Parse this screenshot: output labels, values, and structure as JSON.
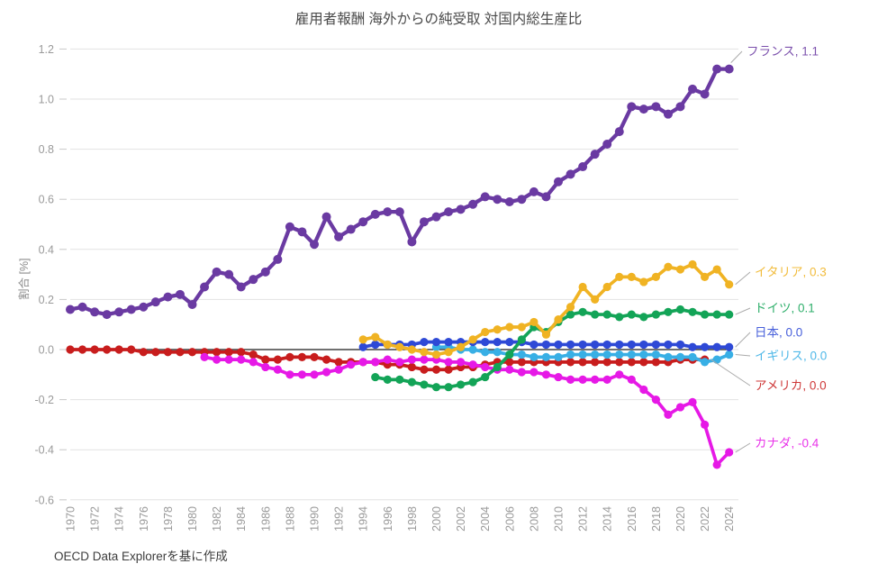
{
  "chart_data": {
    "type": "line",
    "title": "雇用者報酬 海外からの純受取 対国内総生産比",
    "ylabel": "割合 [%]",
    "source_note": "OECD Data Explorerを基に作成",
    "ylim": [
      -0.6,
      1.2
    ],
    "y_ticks": [
      "1.2",
      "1.0",
      "0.8",
      "0.6",
      "0.4",
      "0.2",
      "0.0",
      "-0.2",
      "-0.4",
      "-0.6"
    ],
    "x_ticks": [
      "1970",
      "1972",
      "1974",
      "1976",
      "1978",
      "1980",
      "1982",
      "1984",
      "1986",
      "1988",
      "1990",
      "1992",
      "1994",
      "1996",
      "1998",
      "2000",
      "2002",
      "2004",
      "2006",
      "2008",
      "2010",
      "2012",
      "2014",
      "2016",
      "2018",
      "2020",
      "2022",
      "2024"
    ],
    "grid": true,
    "legend_position": "right-end-annotations",
    "x_range": [
      1970,
      2024
    ],
    "series": [
      {
        "id": "usa",
        "name": "アメリカ",
        "end_label": "アメリカ, 0.0",
        "color": "#c81d1d",
        "start_year": 1970,
        "values": [
          0.0,
          0.0,
          0.0,
          0.0,
          0.0,
          0.0,
          -0.01,
          -0.01,
          -0.01,
          -0.01,
          -0.01,
          -0.01,
          -0.01,
          -0.01,
          -0.01,
          -0.02,
          -0.04,
          -0.04,
          -0.03,
          -0.03,
          -0.03,
          -0.04,
          -0.05,
          -0.05,
          -0.05,
          -0.05,
          -0.06,
          -0.06,
          -0.07,
          -0.08,
          -0.08,
          -0.08,
          -0.07,
          -0.07,
          -0.06,
          -0.05,
          -0.05,
          -0.05,
          -0.05,
          -0.05,
          -0.05,
          -0.05,
          -0.05,
          -0.05,
          -0.05,
          -0.05,
          -0.05,
          -0.05,
          -0.05,
          -0.05,
          -0.04,
          -0.04,
          -0.04
        ]
      },
      {
        "id": "canada",
        "name": "カナダ",
        "end_label": "カナダ, -0.4",
        "color": "#e619e6",
        "start_year": 1981,
        "values": [
          -0.03,
          -0.04,
          -0.04,
          -0.04,
          -0.05,
          -0.07,
          -0.08,
          -0.1,
          -0.1,
          -0.1,
          -0.09,
          -0.08,
          -0.06,
          -0.05,
          -0.05,
          -0.04,
          -0.05,
          -0.04,
          -0.04,
          -0.04,
          -0.05,
          -0.05,
          -0.06,
          -0.07,
          -0.08,
          -0.08,
          -0.09,
          -0.09,
          -0.1,
          -0.11,
          -0.12,
          -0.12,
          -0.12,
          -0.12,
          -0.1,
          -0.12,
          -0.16,
          -0.2,
          -0.26,
          -0.23,
          -0.21,
          -0.3,
          -0.46,
          -0.41
        ]
      },
      {
        "id": "uk",
        "name": "イギリス",
        "end_label": "イギリス, 0.0",
        "color": "#38afe5",
        "start_year": 2000,
        "values": [
          0.01,
          0.01,
          0.0,
          0.0,
          -0.01,
          -0.01,
          -0.02,
          -0.02,
          -0.03,
          -0.03,
          -0.03,
          -0.02,
          -0.02,
          -0.02,
          -0.02,
          -0.02,
          -0.02,
          -0.02,
          -0.02,
          -0.03,
          -0.03,
          -0.03,
          -0.05,
          -0.04,
          -0.02
        ]
      },
      {
        "id": "japan",
        "name": "日本",
        "end_label": "日本, 0.0",
        "color": "#2e49d6",
        "start_year": 1994,
        "values": [
          0.01,
          0.02,
          0.02,
          0.02,
          0.02,
          0.03,
          0.03,
          0.03,
          0.03,
          0.03,
          0.03,
          0.03,
          0.03,
          0.03,
          0.02,
          0.02,
          0.02,
          0.02,
          0.02,
          0.02,
          0.02,
          0.02,
          0.02,
          0.02,
          0.02,
          0.02,
          0.02,
          0.01,
          0.01,
          0.01,
          0.01
        ]
      },
      {
        "id": "germany",
        "name": "ドイツ",
        "end_label": "ドイツ, 0.1",
        "color": "#13a457",
        "start_year": 1995,
        "values": [
          -0.11,
          -0.12,
          -0.12,
          -0.13,
          -0.14,
          -0.15,
          -0.15,
          -0.14,
          -0.13,
          -0.11,
          -0.07,
          -0.02,
          0.04,
          0.09,
          0.07,
          0.11,
          0.14,
          0.15,
          0.14,
          0.14,
          0.13,
          0.14,
          0.13,
          0.14,
          0.15,
          0.16,
          0.15,
          0.14,
          0.14,
          0.14
        ]
      },
      {
        "id": "italy",
        "name": "イタリア",
        "end_label": "イタリア, 0.3",
        "color": "#f0b323",
        "start_year": 1994,
        "values": [
          0.04,
          0.05,
          0.02,
          0.01,
          0.0,
          -0.01,
          -0.02,
          -0.01,
          0.01,
          0.04,
          0.07,
          0.08,
          0.09,
          0.09,
          0.11,
          0.06,
          0.12,
          0.17,
          0.25,
          0.2,
          0.25,
          0.29,
          0.29,
          0.27,
          0.29,
          0.33,
          0.32,
          0.34,
          0.29,
          0.32,
          0.26
        ]
      },
      {
        "id": "france",
        "name": "フランス",
        "end_label": "フランス, 1.1",
        "color": "#6a3aa2",
        "start_year": 1970,
        "values": [
          0.16,
          0.17,
          0.15,
          0.14,
          0.15,
          0.16,
          0.17,
          0.19,
          0.21,
          0.22,
          0.18,
          0.25,
          0.31,
          0.3,
          0.25,
          0.28,
          0.31,
          0.36,
          0.49,
          0.47,
          0.42,
          0.53,
          0.45,
          0.48,
          0.51,
          0.54,
          0.55,
          0.55,
          0.43,
          0.51,
          0.53,
          0.55,
          0.56,
          0.58,
          0.61,
          0.6,
          0.59,
          0.6,
          0.63,
          0.61,
          0.67,
          0.7,
          0.73,
          0.78,
          0.82,
          0.87,
          0.97,
          0.96,
          0.97,
          0.94,
          0.97,
          1.04,
          1.02,
          1.12,
          1.12
        ]
      }
    ]
  }
}
